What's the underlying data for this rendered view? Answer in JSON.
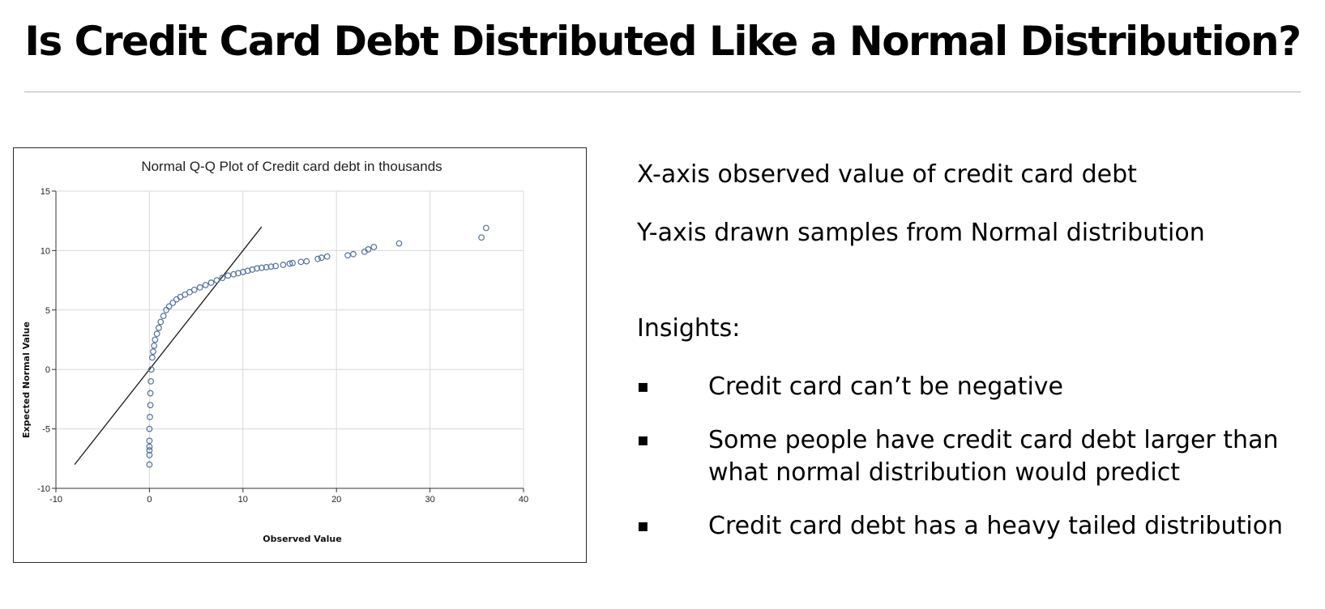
{
  "slide": {
    "title": "Is Credit Card Debt Distributed Like a Normal Distribution?",
    "notes": {
      "x_axis_note": "X-axis observed value of credit card debt",
      "y_axis_note": "Y-axis drawn samples from Normal distribution",
      "insights_heading": "Insights:",
      "bullet_symbol": "▪",
      "bullets": [
        "Credit card can’t be negative",
        "Some people have credit card debt larger than what normal distribution would predict",
        "Credit card debt has a heavy tailed distribution"
      ]
    }
  },
  "chart_data": {
    "type": "scatter",
    "title": "Normal Q-Q Plot of Credit card debt in thousands",
    "xlabel": "Observed Value",
    "ylabel": "Expected Normal Value",
    "xlim": [
      -10,
      40
    ],
    "ylim": [
      -10,
      15
    ],
    "xticks": [
      -10,
      0,
      10,
      20,
      30,
      40
    ],
    "yticks": [
      -10,
      -5,
      0,
      5,
      10,
      15
    ],
    "grid": true,
    "marker": "hollow-circle",
    "colors": {
      "points": "#5470a0",
      "reference_line": "#1a1a1a",
      "grid": "#d9d9d9",
      "axis": "#333333"
    },
    "reference_line": {
      "x": [
        -8,
        12
      ],
      "y": [
        -8,
        12
      ]
    },
    "series": [
      {
        "x": [
          0,
          0,
          0,
          0,
          0,
          0,
          0.05,
          0.1,
          0.1,
          0.15,
          0.2,
          0.3,
          0.4,
          0.5,
          0.6,
          0.8,
          1.0,
          1.2,
          1.5,
          1.8,
          2.1,
          2.5,
          2.9,
          3.3,
          3.8,
          4.3,
          4.8,
          5.4,
          6.0,
          6.6,
          7.2,
          7.8,
          8.4,
          9.0,
          9.5,
          10.0,
          10.5,
          11.0,
          11.5,
          12.0,
          12.5,
          13.0,
          13.5,
          14.3,
          15.0,
          15.3,
          16.2,
          16.8,
          18.0,
          18.4,
          19.0,
          21.2,
          21.8,
          23.0,
          23.4,
          24.0,
          26.7,
          35.5,
          36.0
        ],
        "y": [
          -8.0,
          -7.2,
          -6.8,
          -6.5,
          -6.0,
          -5.0,
          -4.0,
          -3.0,
          -2.0,
          -1.0,
          0,
          1.0,
          1.5,
          2.0,
          2.5,
          3.0,
          3.5,
          4.0,
          4.5,
          5.0,
          5.3,
          5.6,
          5.9,
          6.1,
          6.3,
          6.5,
          6.7,
          6.9,
          7.1,
          7.3,
          7.5,
          7.7,
          7.9,
          8.0,
          8.1,
          8.2,
          8.3,
          8.4,
          8.5,
          8.55,
          8.6,
          8.65,
          8.7,
          8.8,
          8.9,
          8.95,
          9.05,
          9.1,
          9.3,
          9.4,
          9.5,
          9.6,
          9.7,
          9.9,
          10.1,
          10.3,
          10.6,
          11.1,
          11.9
        ]
      }
    ]
  }
}
